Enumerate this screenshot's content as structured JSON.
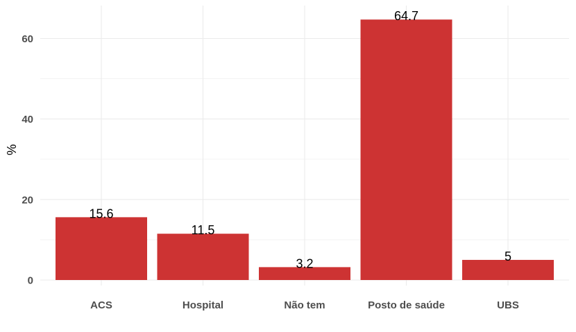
{
  "chart_data": {
    "type": "bar",
    "categories": [
      "ACS",
      "Hospital",
      "Não tem",
      "Posto de saúde",
      "UBS"
    ],
    "values": [
      15.6,
      11.5,
      3.2,
      64.7,
      5
    ],
    "value_labels": [
      "15.6",
      "11.5",
      "3.2",
      "64.7",
      "5"
    ],
    "xlabel": "",
    "ylabel": "%",
    "ylim": [
      0,
      68
    ],
    "yticks": [
      0,
      20,
      40,
      60
    ],
    "ytick_labels": [
      "0",
      "20",
      "40",
      "60"
    ],
    "grid": true,
    "bar_color": "#cd3333",
    "grid_color": "#ebebeb"
  }
}
